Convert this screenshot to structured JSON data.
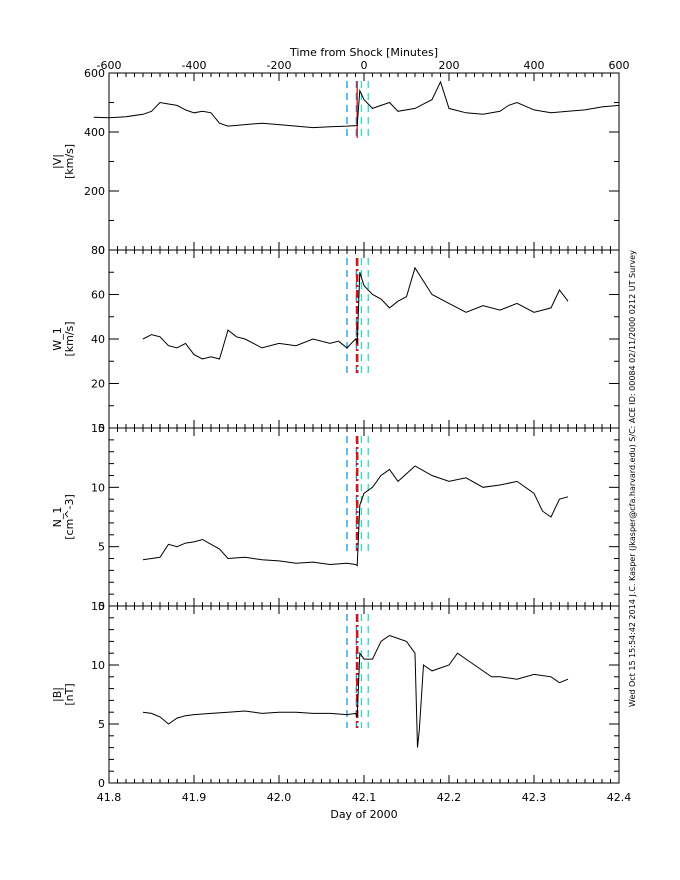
{
  "chart_data": {
    "type": "line",
    "title": "",
    "top_axis": {
      "label": "Time from Shock [Minutes]",
      "ticks": [
        -600,
        -400,
        -200,
        0,
        200,
        400,
        600
      ],
      "range": [
        -600,
        600
      ]
    },
    "x": {
      "label": "Day of 2000",
      "ticks": [
        "41.8",
        "41.9",
        "42.0",
        "42.1",
        "42.2",
        "42.3",
        "42.4"
      ],
      "range": [
        41.8,
        42.4
      ]
    },
    "side_text": "Wed Oct 15 15:54:42 2014   J.C. Kasper (jkasper@cfa.harvard.edu)   S/C: ACE ID: 00084 02/11/2000  0212 UT Survey",
    "markers": {
      "shock_time_day": 42.092,
      "shock_color": "#dd1111",
      "upstream_window_days": [
        42.08,
        42.091
      ],
      "upstream_color": "#1199ee",
      "downstream_window_days": [
        42.097,
        42.105
      ],
      "downstream_color": "#22ddcc"
    },
    "panels": [
      {
        "name": "speed",
        "ylabel": "|V|",
        "yunits": "[km/s]",
        "ylim": [
          0,
          600
        ],
        "yticks": [
          "0",
          "200",
          "400",
          "600"
        ],
        "minor": 100,
        "x": [
          41.782,
          41.8,
          41.82,
          41.84,
          41.85,
          41.86,
          41.87,
          41.88,
          41.89,
          41.9,
          41.91,
          41.92,
          41.93,
          41.94,
          41.96,
          41.98,
          42.0,
          42.02,
          42.04,
          42.06,
          42.08,
          42.092,
          42.095,
          42.1,
          42.11,
          42.12,
          42.13,
          42.14,
          42.16,
          42.18,
          42.19,
          42.2,
          42.22,
          42.24,
          42.26,
          42.27,
          42.28,
          42.3,
          42.32,
          42.34,
          42.36,
          42.38,
          42.4
        ],
        "values": [
          450,
          448,
          452,
          460,
          470,
          500,
          495,
          490,
          475,
          465,
          470,
          465,
          430,
          420,
          425,
          430,
          425,
          420,
          415,
          418,
          420,
          422,
          540,
          510,
          480,
          490,
          500,
          470,
          480,
          510,
          570,
          480,
          465,
          460,
          470,
          490,
          500,
          475,
          465,
          470,
          475,
          485,
          490
        ]
      },
      {
        "name": "thermal_speed",
        "ylabel": "W_1",
        "yunits": "[km/s]",
        "ylim": [
          0,
          80
        ],
        "yticks": [
          "0",
          "20",
          "40",
          "60",
          "80"
        ],
        "minor": 10,
        "x": [
          41.84,
          41.85,
          41.86,
          41.87,
          41.88,
          41.89,
          41.9,
          41.91,
          41.92,
          41.93,
          41.94,
          41.95,
          41.96,
          41.98,
          42.0,
          42.02,
          42.04,
          42.06,
          42.07,
          42.08,
          42.09,
          42.092,
          42.095,
          42.1,
          42.11,
          42.12,
          42.13,
          42.14,
          42.15,
          42.16,
          42.18,
          42.2,
          42.22,
          42.24,
          42.26,
          42.28,
          42.3,
          42.31,
          42.32,
          42.33,
          42.34
        ],
        "values": [
          40,
          42,
          41,
          37,
          36,
          38,
          33,
          31,
          32,
          31,
          44,
          41,
          40,
          36,
          38,
          37,
          40,
          38,
          39,
          36,
          40,
          38,
          70,
          64,
          60,
          58,
          54,
          57,
          59,
          72,
          60,
          56,
          52,
          55,
          53,
          56,
          52,
          53,
          54,
          62,
          57
        ]
      },
      {
        "name": "density",
        "ylabel": "N_1",
        "yunits": "[cm^-3]",
        "ylim": [
          0,
          15
        ],
        "yticks": [
          "0",
          "5",
          "10",
          "15"
        ],
        "minor": 1,
        "x": [
          41.84,
          41.85,
          41.86,
          41.87,
          41.88,
          41.89,
          41.9,
          41.91,
          41.92,
          41.93,
          41.94,
          41.96,
          41.98,
          42.0,
          42.02,
          42.04,
          42.06,
          42.08,
          42.09,
          42.092,
          42.095,
          42.1,
          42.11,
          42.12,
          42.13,
          42.14,
          42.16,
          42.18,
          42.2,
          42.22,
          42.24,
          42.26,
          42.28,
          42.3,
          42.31,
          42.32,
          42.33,
          42.34
        ],
        "values": [
          3.9,
          4.0,
          4.1,
          5.2,
          5.0,
          5.3,
          5.4,
          5.6,
          5.2,
          4.8,
          4.0,
          4.1,
          3.9,
          3.8,
          3.6,
          3.7,
          3.5,
          3.6,
          3.5,
          3.4,
          8.5,
          9.5,
          10.0,
          11.0,
          11.5,
          10.5,
          11.8,
          11.0,
          10.5,
          10.8,
          10.0,
          10.2,
          10.5,
          9.5,
          8.0,
          7.5,
          9.0,
          9.2
        ]
      },
      {
        "name": "magnetic_field",
        "ylabel": "|B|",
        "yunits": "[nT]",
        "ylim": [
          0,
          15
        ],
        "yticks": [
          "0",
          "5",
          "10",
          "15"
        ],
        "minor": 1,
        "x": [
          41.84,
          41.85,
          41.86,
          41.87,
          41.88,
          41.89,
          41.9,
          41.92,
          41.94,
          41.96,
          41.98,
          42.0,
          42.02,
          42.04,
          42.06,
          42.08,
          42.09,
          42.092,
          42.095,
          42.1,
          42.11,
          42.12,
          42.13,
          42.15,
          42.16,
          42.163,
          42.165,
          42.17,
          42.18,
          42.2,
          42.21,
          42.22,
          42.24,
          42.25,
          42.26,
          42.28,
          42.3,
          42.32,
          42.33,
          42.34
        ],
        "values": [
          6.0,
          5.9,
          5.6,
          5.0,
          5.5,
          5.7,
          5.8,
          5.9,
          6.0,
          6.1,
          5.9,
          6.0,
          6.0,
          5.9,
          5.9,
          5.8,
          5.9,
          5.6,
          11.0,
          10.5,
          10.5,
          12.0,
          12.5,
          12.0,
          11.0,
          3.0,
          4.5,
          10.0,
          9.5,
          10.0,
          11.0,
          10.5,
          9.5,
          9.0,
          9.0,
          8.8,
          9.2,
          9.0,
          8.5,
          8.8
        ]
      }
    ]
  }
}
